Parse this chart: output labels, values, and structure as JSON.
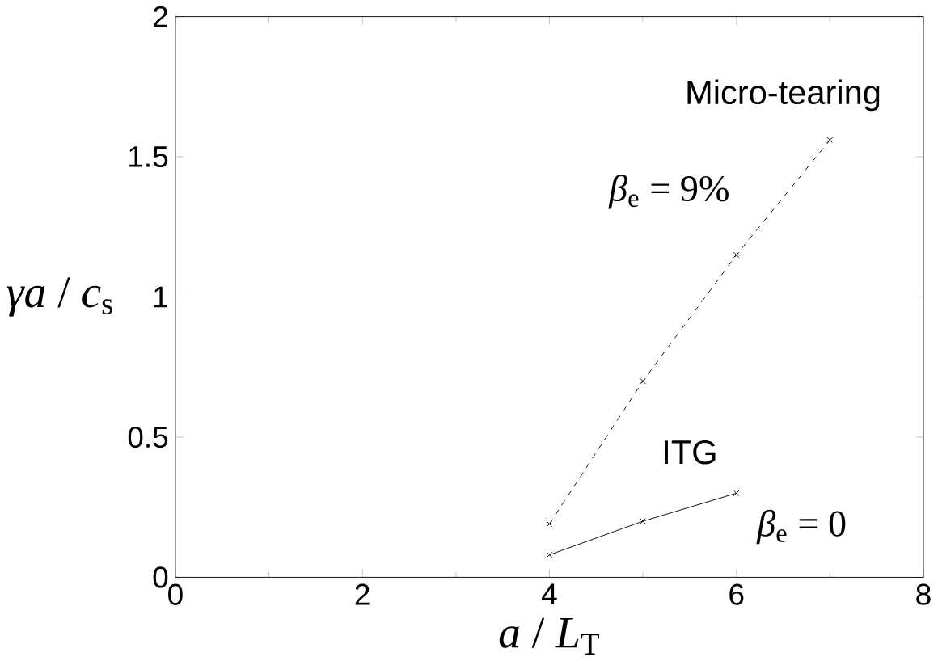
{
  "chart_data": {
    "type": "line",
    "xlabel": "*a* / *L*$_{T}$",
    "ylabel": "*γa* / *c*$_{s}$",
    "xlim": [
      0,
      8
    ],
    "ylim": [
      0,
      2
    ],
    "xticks": [
      0,
      2,
      4,
      6,
      8
    ],
    "yticks": [
      0,
      0.5,
      1,
      1.5,
      2
    ],
    "grid": false,
    "marker": "cross",
    "series": [
      {
        "name": "Micro-tearing",
        "color": "#000000",
        "line_style": "dashed",
        "x": [
          4,
          5,
          6,
          7
        ],
        "values": [
          0.19,
          0.7,
          1.15,
          1.56
        ]
      },
      {
        "name": "ITG",
        "color": "#000000",
        "line_style": "solid",
        "x": [
          4,
          5,
          6
        ],
        "values": [
          0.08,
          0.2,
          0.3
        ]
      }
    ],
    "annotations": [
      "*β*$_{e}$ = 9%",
      "*β*$_{e}$ = 0"
    ]
  }
}
